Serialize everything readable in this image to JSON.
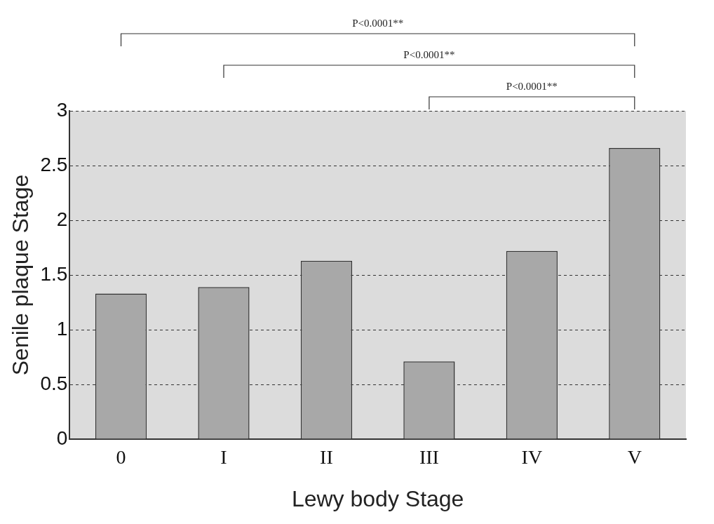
{
  "chart_data": {
    "type": "bar",
    "xlabel": "Lewy body Stage",
    "ylabel": "Senile plaque Stage",
    "categories": [
      "0",
      "I",
      "II",
      "III",
      "IV",
      "V"
    ],
    "values": [
      1.33,
      1.39,
      1.63,
      0.71,
      1.72,
      2.66
    ],
    "color": "#a8a8a8",
    "ylim": [
      0,
      3
    ],
    "yticks": [
      0,
      0.5,
      1,
      1.5,
      2,
      2.5,
      3
    ],
    "grid": "y",
    "legend": false,
    "annotations": [
      "P<0.0001**",
      "P<0.0001**",
      "P<0.0001**"
    ]
  }
}
